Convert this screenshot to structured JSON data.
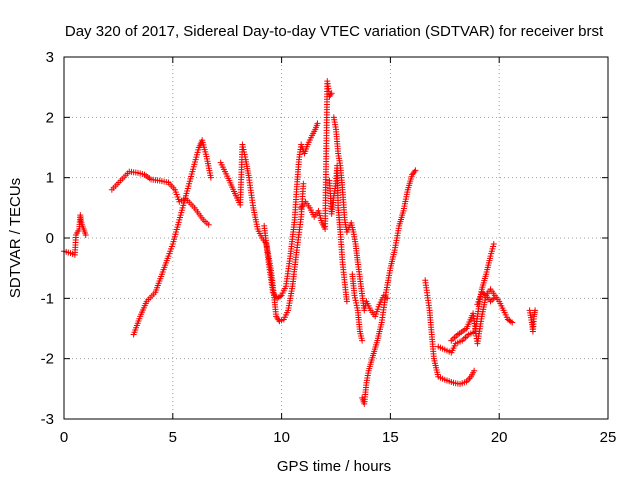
{
  "chart_data": {
    "type": "scatter",
    "title": "Day 320 of 2017, Sidereal Day-to-day VTEC variation (SDTVAR) for receiver brst",
    "xlabel": "GPS time / hours",
    "ylabel": "SDTVAR / TECUs",
    "xlim": [
      0,
      25
    ],
    "ylim": [
      -3,
      3
    ],
    "xticks": [
      0,
      5,
      10,
      15,
      20,
      25
    ],
    "yticks": [
      -3,
      -2,
      -1,
      0,
      1,
      2,
      3
    ],
    "grid": true,
    "marker": "+",
    "color": "#ff0000",
    "traces": [
      [
        [
          0.0,
          -0.22
        ],
        [
          0.3,
          -0.25
        ],
        [
          0.5,
          -0.28
        ],
        [
          0.55,
          0.05
        ],
        [
          0.7,
          0.15
        ],
        [
          0.75,
          0.38
        ],
        [
          0.8,
          0.25
        ],
        [
          0.9,
          0.15
        ],
        [
          1.0,
          0.05
        ]
      ],
      [
        [
          2.2,
          0.8
        ],
        [
          2.6,
          0.95
        ],
        [
          3.0,
          1.1
        ],
        [
          3.4,
          1.08
        ],
        [
          3.7,
          1.05
        ],
        [
          4.0,
          0.97
        ],
        [
          4.4,
          0.95
        ],
        [
          4.8,
          0.92
        ],
        [
          5.1,
          0.8
        ],
        [
          5.3,
          0.6
        ],
        [
          5.6,
          0.65
        ],
        [
          6.0,
          0.5
        ],
        [
          6.4,
          0.3
        ],
        [
          6.65,
          0.22
        ]
      ],
      [
        [
          3.2,
          -1.6
        ],
        [
          3.5,
          -1.3
        ],
        [
          3.8,
          -1.05
        ],
        [
          4.2,
          -0.9
        ],
        [
          4.5,
          -0.6
        ],
        [
          4.8,
          -0.3
        ],
        [
          5.0,
          -0.1
        ],
        [
          5.3,
          0.3
        ],
        [
          5.6,
          0.7
        ],
        [
          5.9,
          1.1
        ],
        [
          6.2,
          1.5
        ],
        [
          6.35,
          1.62
        ],
        [
          6.55,
          1.35
        ],
        [
          6.75,
          1.0
        ]
      ],
      [
        [
          7.2,
          1.25
        ],
        [
          7.6,
          0.95
        ],
        [
          7.9,
          0.7
        ],
        [
          8.1,
          0.55
        ],
        [
          8.2,
          1.55
        ],
        [
          8.35,
          1.3
        ],
        [
          8.5,
          1.0
        ],
        [
          8.7,
          0.5
        ],
        [
          8.9,
          0.15
        ],
        [
          9.1,
          0.0
        ],
        [
          9.3,
          -0.1
        ],
        [
          9.5,
          -0.5
        ],
        [
          9.65,
          -0.95
        ],
        [
          9.75,
          -1.3
        ],
        [
          9.9,
          -1.38
        ],
        [
          10.1,
          -1.35
        ],
        [
          10.3,
          -1.2
        ],
        [
          10.5,
          -0.8
        ],
        [
          10.7,
          -0.2
        ],
        [
          10.9,
          0.35
        ],
        [
          11.0,
          0.9
        ]
      ],
      [
        [
          9.2,
          0.2
        ],
        [
          9.4,
          -0.4
        ],
        [
          9.6,
          -0.9
        ],
        [
          9.8,
          -1.0
        ],
        [
          10.0,
          -0.95
        ],
        [
          10.2,
          -0.8
        ],
        [
          10.4,
          -0.3
        ],
        [
          10.6,
          0.3
        ],
        [
          10.7,
          0.85
        ],
        [
          10.8,
          1.3
        ],
        [
          10.9,
          1.55
        ],
        [
          11.05,
          1.4
        ],
        [
          11.2,
          1.55
        ],
        [
          11.4,
          1.7
        ],
        [
          11.55,
          1.8
        ],
        [
          11.65,
          1.9
        ]
      ],
      [
        [
          10.9,
          0.5
        ],
        [
          11.1,
          0.6
        ],
        [
          11.3,
          0.5
        ],
        [
          11.5,
          0.35
        ],
        [
          11.7,
          0.45
        ],
        [
          11.85,
          0.25
        ],
        [
          12.0,
          0.15
        ],
        [
          12.1,
          2.6
        ],
        [
          12.2,
          2.35
        ],
        [
          12.3,
          2.4
        ]
      ],
      [
        [
          12.2,
          0.95
        ],
        [
          12.3,
          0.4
        ],
        [
          12.4,
          0.7
        ],
        [
          12.5,
          0.9
        ],
        [
          12.55,
          1.2
        ],
        [
          12.6,
          0.5
        ],
        [
          12.7,
          0.1
        ],
        [
          12.8,
          -0.4
        ],
        [
          12.95,
          -0.9
        ],
        [
          13.0,
          -1.05
        ]
      ],
      [
        [
          12.4,
          2.0
        ],
        [
          12.5,
          1.8
        ],
        [
          12.6,
          1.4
        ],
        [
          12.7,
          1.2
        ],
        [
          12.8,
          0.8
        ],
        [
          12.9,
          0.3
        ],
        [
          13.0,
          0.1
        ],
        [
          13.2,
          0.25
        ],
        [
          13.3,
          0.1
        ],
        [
          13.4,
          -0.1
        ],
        [
          13.5,
          -0.4
        ],
        [
          13.65,
          -0.8
        ],
        [
          13.8,
          -1.2
        ],
        [
          13.9,
          -1.05
        ],
        [
          14.1,
          -1.2
        ],
        [
          14.3,
          -1.3
        ],
        [
          14.5,
          -1.1
        ],
        [
          14.7,
          -0.95
        ],
        [
          14.85,
          -1.0
        ]
      ],
      [
        [
          13.25,
          -0.6
        ],
        [
          13.35,
          -0.95
        ],
        [
          13.5,
          -1.2
        ],
        [
          13.6,
          -1.55
        ],
        [
          13.7,
          -1.7
        ]
      ],
      [
        [
          13.7,
          -2.65
        ],
        [
          13.8,
          -2.75
        ],
        [
          13.9,
          -2.4
        ],
        [
          14.0,
          -2.2
        ],
        [
          14.2,
          -1.95
        ],
        [
          14.4,
          -1.7
        ],
        [
          14.6,
          -1.4
        ],
        [
          14.8,
          -0.9
        ],
        [
          15.0,
          -0.5
        ],
        [
          15.2,
          -0.2
        ],
        [
          15.4,
          0.2
        ],
        [
          15.6,
          0.45
        ],
        [
          15.8,
          0.8
        ],
        [
          16.0,
          1.05
        ],
        [
          16.15,
          1.12
        ]
      ],
      [
        [
          16.6,
          -0.7
        ],
        [
          16.8,
          -1.2
        ],
        [
          16.9,
          -1.6
        ],
        [
          17.0,
          -2.0
        ],
        [
          17.2,
          -2.3
        ],
        [
          17.5,
          -2.35
        ],
        [
          17.9,
          -2.4
        ],
        [
          18.2,
          -2.42
        ],
        [
          18.5,
          -2.38
        ],
        [
          18.7,
          -2.3
        ],
        [
          18.85,
          -2.2
        ]
      ],
      [
        [
          17.2,
          -1.8
        ],
        [
          17.5,
          -1.85
        ],
        [
          17.8,
          -1.9
        ],
        [
          18.0,
          -1.75
        ],
        [
          18.3,
          -1.7
        ],
        [
          18.6,
          -1.6
        ],
        [
          18.9,
          -1.55
        ],
        [
          19.0,
          -1.3
        ],
        [
          19.1,
          -1.05
        ],
        [
          19.2,
          -0.85
        ],
        [
          19.4,
          -0.6
        ],
        [
          19.6,
          -0.3
        ],
        [
          19.75,
          -0.1
        ]
      ],
      [
        [
          17.8,
          -1.7
        ],
        [
          18.1,
          -1.6
        ],
        [
          18.5,
          -1.5
        ],
        [
          18.8,
          -1.25
        ],
        [
          19.0,
          -1.75
        ],
        [
          19.2,
          -1.3
        ],
        [
          19.4,
          -0.95
        ],
        [
          19.6,
          -0.85
        ],
        [
          19.8,
          -0.95
        ],
        [
          20.0,
          -1.05
        ],
        [
          20.2,
          -1.2
        ],
        [
          20.4,
          -1.35
        ],
        [
          20.6,
          -1.4
        ]
      ],
      [
        [
          19.0,
          -1.1
        ],
        [
          19.2,
          -0.9
        ],
        [
          19.4,
          -0.95
        ],
        [
          19.6,
          -1.05
        ],
        [
          19.75,
          -1.0
        ]
      ],
      [
        [
          21.4,
          -1.2
        ],
        [
          21.5,
          -1.4
        ],
        [
          21.55,
          -1.55
        ],
        [
          21.6,
          -1.3
        ],
        [
          21.65,
          -1.2
        ]
      ]
    ]
  }
}
